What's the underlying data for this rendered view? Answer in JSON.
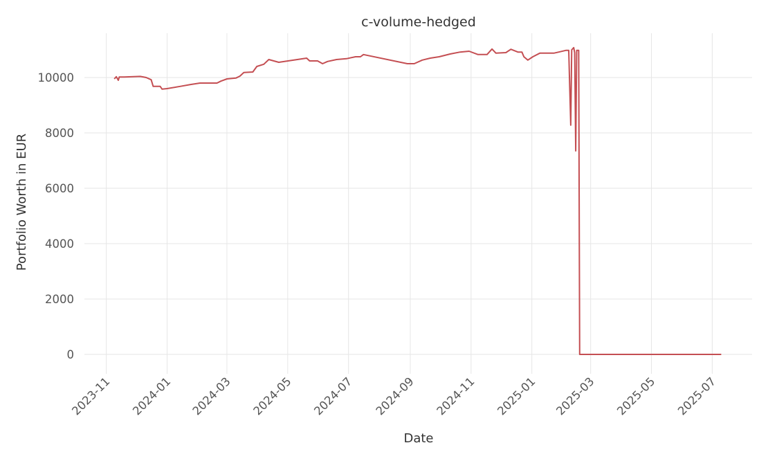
{
  "chart_data": {
    "type": "line",
    "title": "c-volume-hedged",
    "x_label": "Date",
    "y_label": "Portfolio Worth in EUR",
    "x": [
      "2023-11-09",
      "2023-11-11",
      "2023-11-13",
      "2023-11-14",
      "2023-11-19",
      "2023-12-05",
      "2023-12-11",
      "2023-12-16",
      "2023-12-18",
      "2023-12-25",
      "2023-12-27",
      "2024-01-01",
      "2024-01-14",
      "2024-01-25",
      "2024-02-03",
      "2024-02-20",
      "2024-02-24",
      "2024-03-01",
      "2024-03-10",
      "2024-03-14",
      "2024-03-18",
      "2024-03-27",
      "2024-03-31",
      "2024-04-07",
      "2024-04-12",
      "2024-04-17",
      "2024-04-22",
      "2024-05-20",
      "2024-05-23",
      "2024-05-31",
      "2024-06-05",
      "2024-06-10",
      "2024-06-19",
      "2024-06-29",
      "2024-07-08",
      "2024-07-13",
      "2024-07-16",
      "2024-08-29",
      "2024-09-05",
      "2024-09-13",
      "2024-09-21",
      "2024-09-30",
      "2024-10-11",
      "2024-10-21",
      "2024-10-30",
      "2024-11-08",
      "2024-11-17",
      "2024-11-22",
      "2024-11-26",
      "2024-12-06",
      "2024-12-11",
      "2024-12-18",
      "2024-12-22",
      "2024-12-24",
      "2024-12-28",
      "2025-01-02",
      "2025-01-09",
      "2025-01-23",
      "2025-01-28",
      "2025-02-04",
      "2025-02-07",
      "2025-02-09",
      "2025-02-10",
      "2025-02-12",
      "2025-02-13",
      "2025-02-14",
      "2025-02-15",
      "2025-02-17",
      "2025-02-18",
      "2025-07-10"
    ],
    "series": [
      {
        "name": "c-volume-hedged",
        "color": "#c44e52",
        "values": [
          9950,
          10030,
          9900,
          10020,
          10020,
          10040,
          10000,
          9920,
          9680,
          9680,
          9580,
          9600,
          9680,
          9750,
          9800,
          9800,
          9870,
          9950,
          9980,
          10050,
          10180,
          10200,
          10400,
          10480,
          10650,
          10600,
          10550,
          10700,
          10600,
          10600,
          10500,
          10580,
          10650,
          10680,
          10750,
          10750,
          10830,
          10500,
          10500,
          10630,
          10700,
          10750,
          10850,
          10920,
          10950,
          10830,
          10830,
          11030,
          10880,
          10900,
          11020,
          10920,
          10920,
          10750,
          10630,
          10750,
          10880,
          10880,
          10920,
          10980,
          10980,
          8280,
          11000,
          11080,
          10900,
          7350,
          10980,
          10980,
          0,
          0
        ]
      }
    ],
    "xlim": [
      "2023-10-10",
      "2025-08-10"
    ],
    "xticks": [
      "2023-11",
      "2024-01",
      "2024-03",
      "2024-05",
      "2024-07",
      "2024-09",
      "2024-11",
      "2025-01",
      "2025-03",
      "2025-05",
      "2025-07"
    ],
    "ylim": [
      -700,
      11600
    ],
    "yticks": [
      0,
      2000,
      4000,
      6000,
      8000,
      10000
    ],
    "grid": true
  }
}
